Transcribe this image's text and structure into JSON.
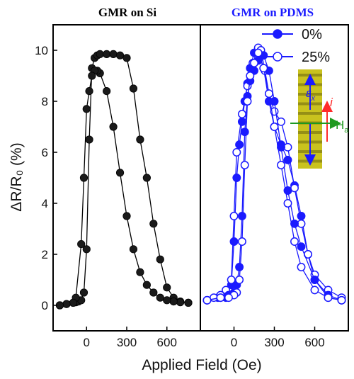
{
  "chart_data": {
    "type": "scatter",
    "xlabel": "Applied Field (Oe)",
    "ylabel": "ΔR/R₀ (%)",
    "xlim": [
      -250,
      850
    ],
    "ylim": [
      -1,
      11
    ],
    "x_ticks": [
      0,
      300,
      600
    ],
    "x_tick_labels": [
      "0",
      "300",
      "600"
    ],
    "y_ticks": [
      0,
      2,
      4,
      6,
      8,
      10
    ],
    "y_tick_labels": [
      "0",
      "2",
      "4",
      "6",
      "8",
      "10"
    ],
    "panels": [
      {
        "title": "GMR on Si",
        "color": "#000000",
        "series": [
          {
            "name": "",
            "x": [
              -200,
              -150,
              -100,
              -80,
              -60,
              -40,
              -20,
              0,
              20,
              40,
              60,
              80,
              100,
              150,
              200,
              250,
              300,
              350,
              400,
              450,
              500,
              550,
              600,
              650,
              700,
              760
            ],
            "y": [
              0.0,
              0.05,
              0.1,
              0.12,
              0.15,
              0.2,
              0.5,
              2.2,
              6.5,
              9.3,
              9.7,
              9.8,
              9.85,
              9.85,
              9.85,
              9.8,
              9.7,
              8.5,
              6.5,
              5.0,
              3.2,
              1.8,
              0.7,
              0.3,
              0.15,
              0.1
            ]
          },
          {
            "name": "",
            "x": [
              760,
              700,
              650,
              600,
              550,
              500,
              450,
              400,
              350,
              300,
              250,
              200,
              150,
              100,
              80,
              60,
              40,
              20,
              0,
              -20,
              -40,
              -80,
              -100,
              -150,
              -200
            ],
            "y": [
              0.1,
              0.12,
              0.15,
              0.2,
              0.3,
              0.5,
              0.8,
              1.3,
              2.2,
              3.5,
              5.2,
              7.0,
              8.4,
              9.1,
              9.2,
              9.2,
              9.0,
              8.4,
              7.7,
              5.0,
              2.4,
              0.3,
              0.1,
              0.05,
              0.0
            ]
          }
        ]
      },
      {
        "title": "GMR on PDMS",
        "color": "#1a1aff",
        "series": [
          {
            "name": "0%",
            "marker": "filled",
            "x": [
              -200,
              -120,
              -60,
              -20,
              0,
              20,
              40,
              60,
              80,
              100,
              120,
              150,
              180,
              220,
              260,
              300,
              350,
              400,
              450,
              500,
              550,
              600,
              700,
              800
            ],
            "y": [
              0.2,
              0.3,
              0.4,
              0.8,
              2.5,
              5.0,
              6.3,
              7.2,
              8.0,
              8.7,
              9.3,
              9.9,
              10.0,
              9.3,
              8.0,
              7.0,
              6.3,
              5.7,
              4.7,
              3.5,
              2.0,
              1.0,
              0.3,
              0.2
            ]
          },
          {
            "name": "25%",
            "marker": "open",
            "x": [
              -200,
              -150,
              -100,
              -60,
              -20,
              0,
              20,
              60,
              100,
              140,
              180,
              200,
              230,
              260,
              300,
              350,
              400,
              450,
              500,
              550,
              600,
              700,
              800
            ],
            "y": [
              0.2,
              0.3,
              0.4,
              0.6,
              1.0,
              3.5,
              6.0,
              7.5,
              8.6,
              9.5,
              10.1,
              10.0,
              9.2,
              8.3,
              7.6,
              7.2,
              6.2,
              4.6,
              3.2,
              2.0,
              1.2,
              0.6,
              0.3
            ]
          },
          {
            "name": "",
            "marker": "filled",
            "x": [
              800,
              700,
              600,
              500,
              450,
              400,
              350,
              300,
              260,
              220,
              180,
              150,
              120,
              100,
              80,
              60,
              40,
              20,
              0,
              -20,
              -40,
              -60,
              -100,
              -200
            ],
            "y": [
              0.2,
              0.4,
              1.0,
              2.3,
              3.2,
              4.5,
              6.2,
              8.0,
              9.2,
              9.8,
              9.6,
              9.2,
              8.8,
              8.2,
              6.8,
              3.5,
              1.5,
              0.8,
              0.5,
              0.4,
              0.4,
              0.3,
              0.3,
              0.2
            ]
          },
          {
            "name": "",
            "marker": "open",
            "x": [
              800,
              700,
              600,
              500,
              450,
              400,
              350,
              300,
              260,
              220,
              180,
              150,
              120,
              100,
              80,
              60,
              40,
              20,
              0,
              -40,
              -100,
              -200
            ],
            "y": [
              0.2,
              0.3,
              0.6,
              1.5,
              2.5,
              4.0,
              5.5,
              7.0,
              8.3,
              9.3,
              9.9,
              9.5,
              9.0,
              8.0,
              5.5,
              2.5,
              1.0,
              0.5,
              0.4,
              0.3,
              0.3,
              0.2
            ]
          }
        ]
      }
    ],
    "inset": {
      "labels": [
        "ε",
        "i",
        "H"
      ],
      "label_subscripts": [
        "x",
        "",
        "a"
      ],
      "colors": {
        "strip": "#c9c21e",
        "strip_band": "#6a6610",
        "strain_arrow": "#1a1aff",
        "current_arrow": "#ff2b2b",
        "field_arrow": "#1f9a1f"
      }
    }
  }
}
